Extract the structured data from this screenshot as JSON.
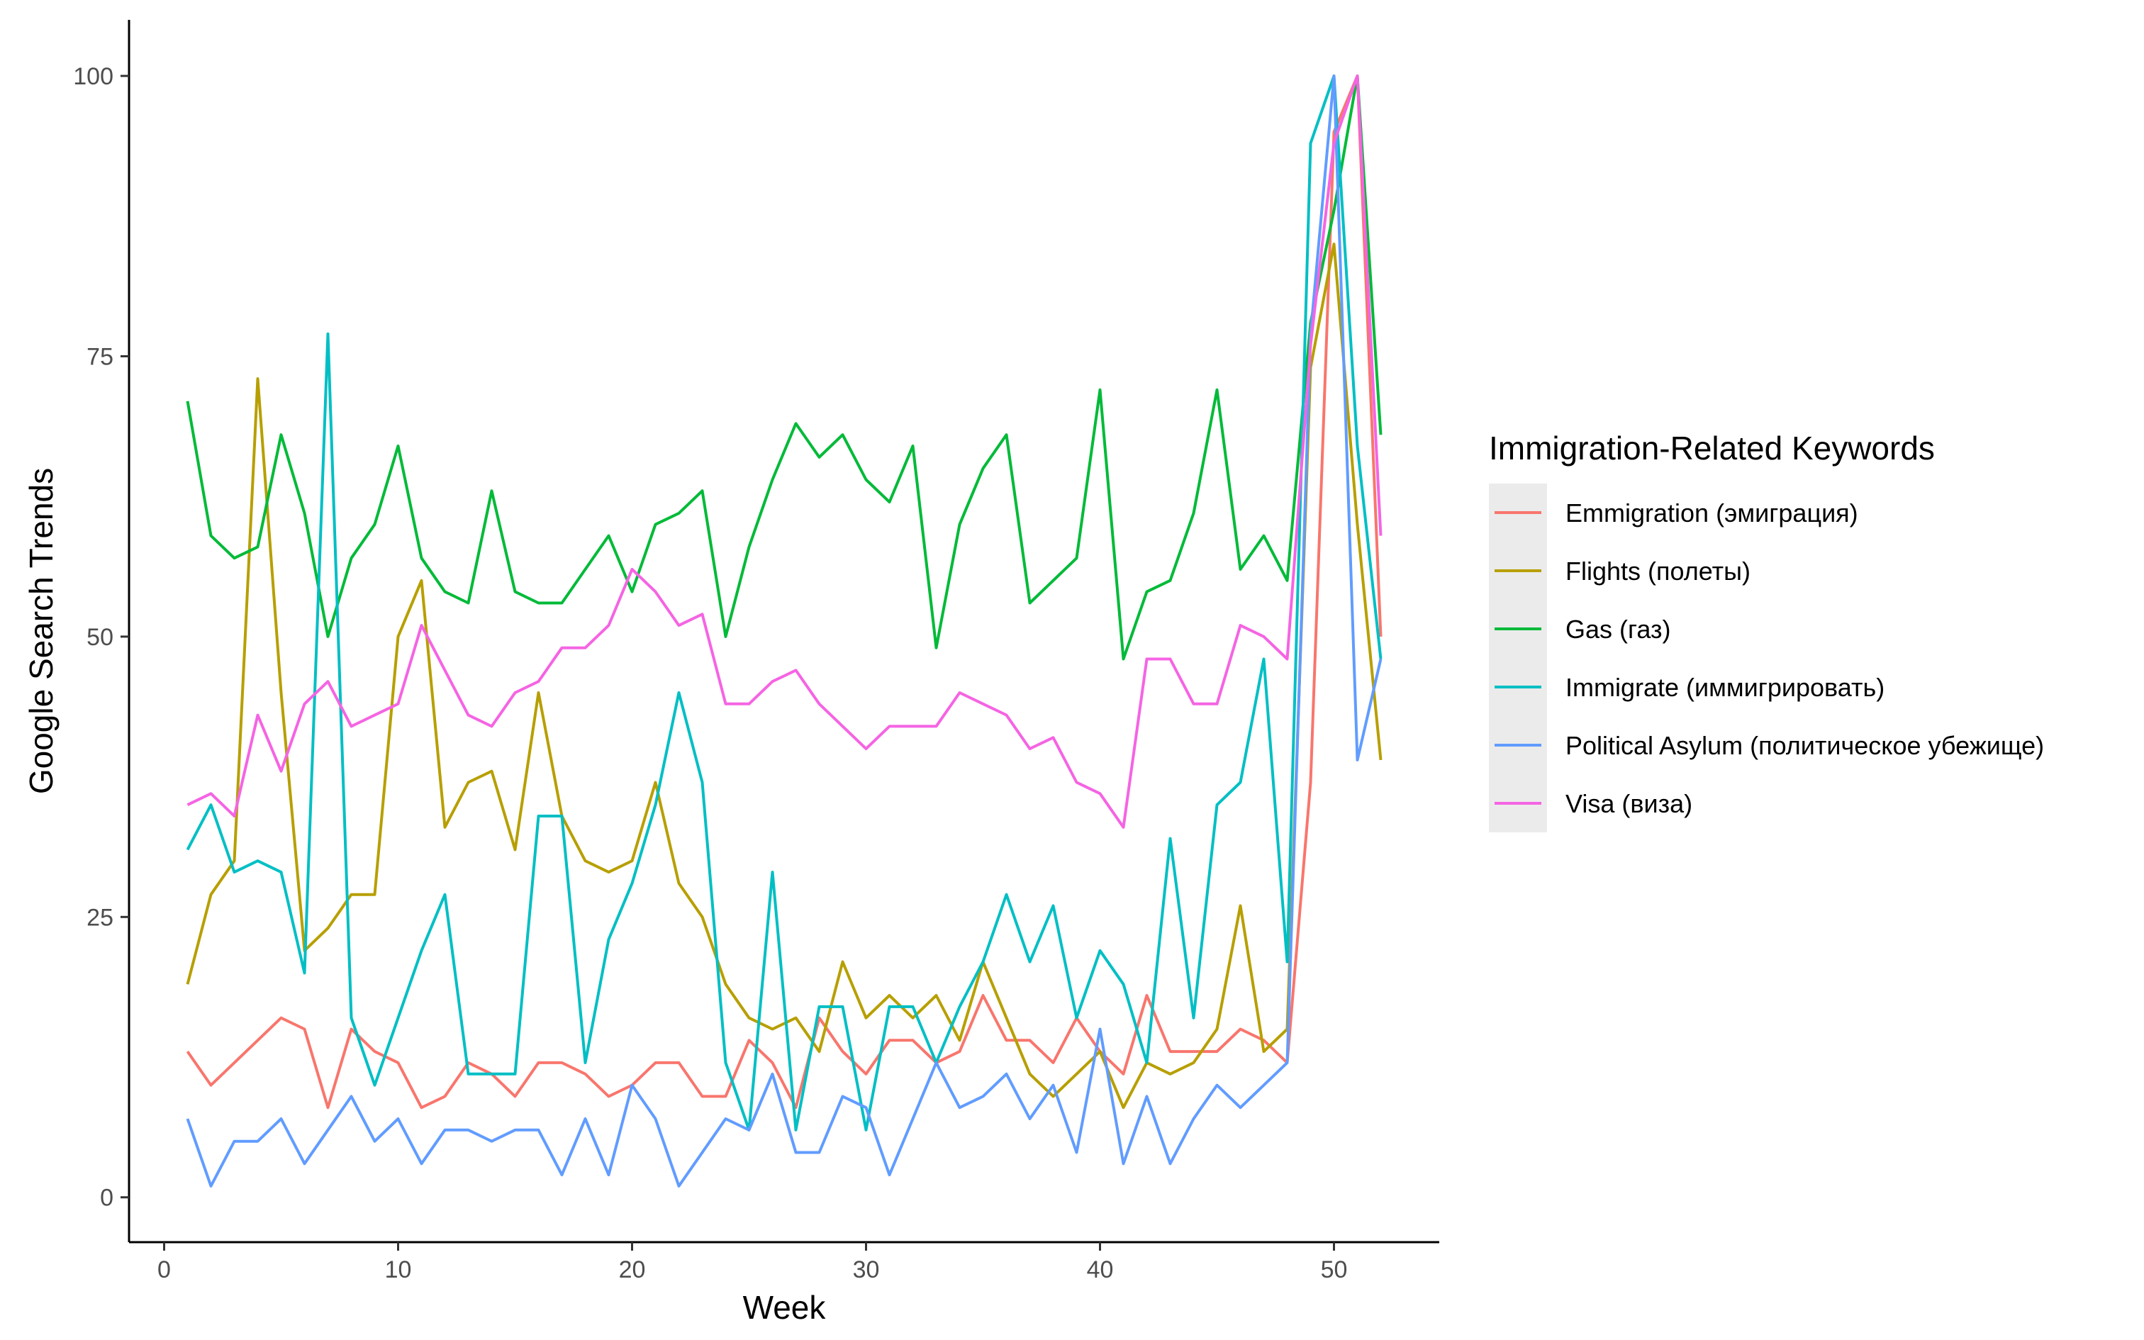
{
  "chart_data": {
    "type": "line",
    "title": "",
    "xlabel": "Week",
    "ylabel": "Google Search Trends",
    "xlim": [
      -1.5,
      54.5
    ],
    "ylim": [
      -4,
      105
    ],
    "x_ticks": [
      0,
      10,
      20,
      30,
      40,
      50
    ],
    "y_ticks": [
      0,
      25,
      50,
      75,
      100
    ],
    "grid": false,
    "legend_position": "right",
    "legend_title": "Immigration-Related Keywords",
    "x": [
      1,
      2,
      3,
      4,
      5,
      6,
      7,
      8,
      9,
      10,
      11,
      12,
      13,
      14,
      15,
      16,
      17,
      18,
      19,
      20,
      21,
      22,
      23,
      24,
      25,
      26,
      27,
      28,
      29,
      30,
      31,
      32,
      33,
      34,
      35,
      36,
      37,
      38,
      39,
      40,
      41,
      42,
      43,
      44,
      45,
      46,
      47,
      48,
      49,
      50,
      51,
      52
    ],
    "series": [
      {
        "name": "Emmigration (эмиграция)",
        "color": "#F8766D",
        "values": [
          13,
          10,
          12,
          14,
          16,
          15,
          8,
          15,
          13,
          12,
          8,
          9,
          12,
          11,
          9,
          12,
          12,
          11,
          9,
          10,
          12,
          12,
          9,
          9,
          14,
          12,
          8,
          16,
          13,
          11,
          14,
          14,
          12,
          13,
          18,
          14,
          14,
          12,
          16,
          13,
          11,
          18,
          13,
          13,
          13,
          15,
          14,
          12,
          37,
          95,
          100,
          50
        ]
      },
      {
        "name": "Flights (полеты)",
        "color": "#B79F00",
        "values": [
          19,
          27,
          30,
          73,
          45,
          22,
          24,
          27,
          27,
          50,
          55,
          33,
          37,
          38,
          31,
          45,
          34,
          30,
          29,
          30,
          37,
          28,
          25,
          19,
          16,
          15,
          16,
          13,
          21,
          16,
          18,
          16,
          18,
          14,
          21,
          16,
          11,
          9,
          11,
          13,
          8,
          12,
          11,
          12,
          15,
          26,
          13,
          15,
          74,
          85,
          60,
          39
        ]
      },
      {
        "name": "Gas (газ)",
        "color": "#00BA38",
        "values": [
          71,
          59,
          57,
          58,
          68,
          61,
          50,
          57,
          60,
          67,
          57,
          54,
          53,
          63,
          54,
          53,
          53,
          56,
          59,
          54,
          60,
          61,
          63,
          50,
          58,
          64,
          69,
          66,
          68,
          64,
          62,
          67,
          49,
          60,
          65,
          68,
          53,
          55,
          57,
          72,
          48,
          54,
          55,
          61,
          72,
          56,
          59,
          55,
          78,
          88,
          100,
          68
        ]
      },
      {
        "name": "Immigrate (иммигрировать)",
        "color": "#00BFC4",
        "values": [
          31,
          35,
          29,
          30,
          29,
          20,
          77,
          16,
          10,
          16,
          22,
          27,
          11,
          11,
          11,
          34,
          34,
          12,
          23,
          28,
          35,
          45,
          37,
          12,
          6,
          29,
          6,
          17,
          17,
          6,
          17,
          17,
          12,
          17,
          21,
          27,
          21,
          26,
          16,
          22,
          19,
          12,
          32,
          16,
          35,
          37,
          48,
          21,
          94,
          100,
          67,
          48
        ]
      },
      {
        "name": "Political Asylum (политическое убежище)",
        "color": "#619CFF",
        "values": [
          7,
          1,
          5,
          5,
          7,
          3,
          6,
          9,
          5,
          7,
          3,
          6,
          6,
          5,
          6,
          6,
          2,
          7,
          2,
          10,
          7,
          1,
          4,
          7,
          6,
          11,
          4,
          4,
          9,
          8,
          2,
          7,
          12,
          8,
          9,
          11,
          7,
          10,
          4,
          15,
          3,
          9,
          3,
          7,
          10,
          8,
          10,
          12,
          77,
          100,
          39,
          48
        ]
      },
      {
        "name": "Visa (виза)",
        "color": "#F564E3",
        "values": [
          35,
          36,
          34,
          43,
          38,
          44,
          46,
          42,
          43,
          44,
          51,
          47,
          43,
          42,
          45,
          46,
          49,
          49,
          51,
          56,
          54,
          51,
          52,
          44,
          44,
          46,
          47,
          44,
          42,
          40,
          42,
          42,
          42,
          45,
          44,
          43,
          40,
          41,
          37,
          36,
          33,
          48,
          48,
          44,
          44,
          51,
          50,
          48,
          76,
          94,
          100,
          59
        ]
      }
    ]
  }
}
